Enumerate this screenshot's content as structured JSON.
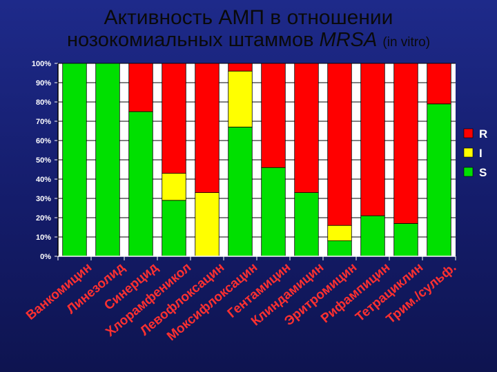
{
  "title": {
    "line1": "Активность АМП в отношении",
    "line2_main": "нозокомиальных штаммов",
    "line2_italic": "MRSA",
    "line2_small": "(in vitro)"
  },
  "chart_data": {
    "type": "bar",
    "stacked": true,
    "normalized_percent": true,
    "categories": [
      "Ванкомицин",
      "Линезолид",
      "Синерцид",
      "Хлорамфеникол",
      "Левофлоксацин",
      "Моксифлоксацин",
      "Гентамицин",
      "Клиндамицин",
      "Эритромицин",
      "Рифампицин",
      "Тетрациклин",
      "Трим./сульф."
    ],
    "series": [
      {
        "name": "S",
        "color": "#00e000",
        "values": [
          100,
          100,
          75,
          29,
          0,
          67,
          46,
          33,
          8,
          21,
          17,
          79
        ]
      },
      {
        "name": "I",
        "color": "#ffff00",
        "values": [
          0,
          0,
          0,
          14,
          33,
          29,
          0,
          0,
          8,
          0,
          0,
          0
        ]
      },
      {
        "name": "R",
        "color": "#ff0000",
        "values": [
          0,
          0,
          25,
          57,
          67,
          4,
          54,
          67,
          84,
          79,
          83,
          21
        ]
      }
    ],
    "yticks": [
      "0%",
      "10%",
      "20%",
      "30%",
      "40%",
      "50%",
      "60%",
      "70%",
      "80%",
      "90%",
      "100%"
    ],
    "ylim": [
      0,
      100
    ],
    "legend_order": [
      "R",
      "I",
      "S"
    ],
    "legend_position": "right",
    "grid": true,
    "plot_background": "#ffffff",
    "xlabel_color": "#ff3030"
  }
}
